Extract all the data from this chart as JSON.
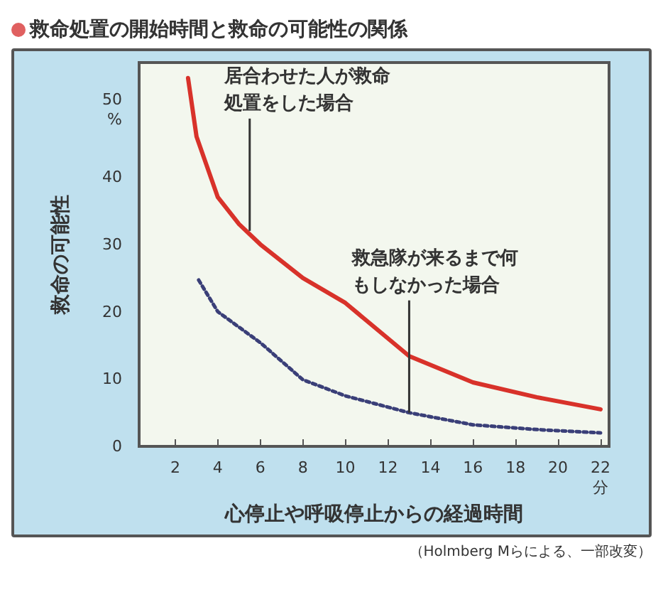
{
  "chart_data": {
    "type": "line",
    "title": "救命処置の開始時間と救命の可能性の関係",
    "xlabel": "心停止や呼吸停止からの経過時間",
    "ylabel": "救命の可能性",
    "xlim": [
      0.3,
      22.4
    ],
    "xticks": [
      2,
      4,
      6,
      8,
      10,
      12,
      14,
      16,
      18,
      20,
      {
        "value": 22,
        "label": "22\n分"
      }
    ],
    "ylim": [
      0,
      57
    ],
    "yticks": [
      0,
      10,
      20,
      30,
      40,
      {
        "value": 50,
        "label": "50\n%"
      }
    ],
    "grid": false,
    "marker": "none",
    "series": [
      {
        "color": "#d8322a",
        "line_style": "solid",
        "x": [
          2.6,
          3,
          4,
          5,
          6,
          8,
          10,
          13,
          16,
          19,
          22
        ],
        "values": [
          54.7,
          46,
          37,
          33,
          30,
          25,
          21.3,
          13.4,
          9.5,
          7.3,
          5.5
        ]
      },
      {
        "color": "#3a3f78",
        "line_style": "dotted",
        "x": [
          3.1,
          4,
          6,
          8,
          10,
          13,
          16,
          19,
          22
        ],
        "values": [
          24.7,
          20,
          15.4,
          9.9,
          7.5,
          5,
          3.2,
          2.5,
          2
        ]
      }
    ],
    "annotations": [
      {
        "text": "居合わせた人が救命処置をした場合",
        "x": 5.5,
        "y": 32
      },
      {
        "text": "救急隊が来るまで何もしなかった場合",
        "x": 13,
        "y": 5
      },
      "（Holmberg Mらによる、一部改変）"
    ]
  }
}
